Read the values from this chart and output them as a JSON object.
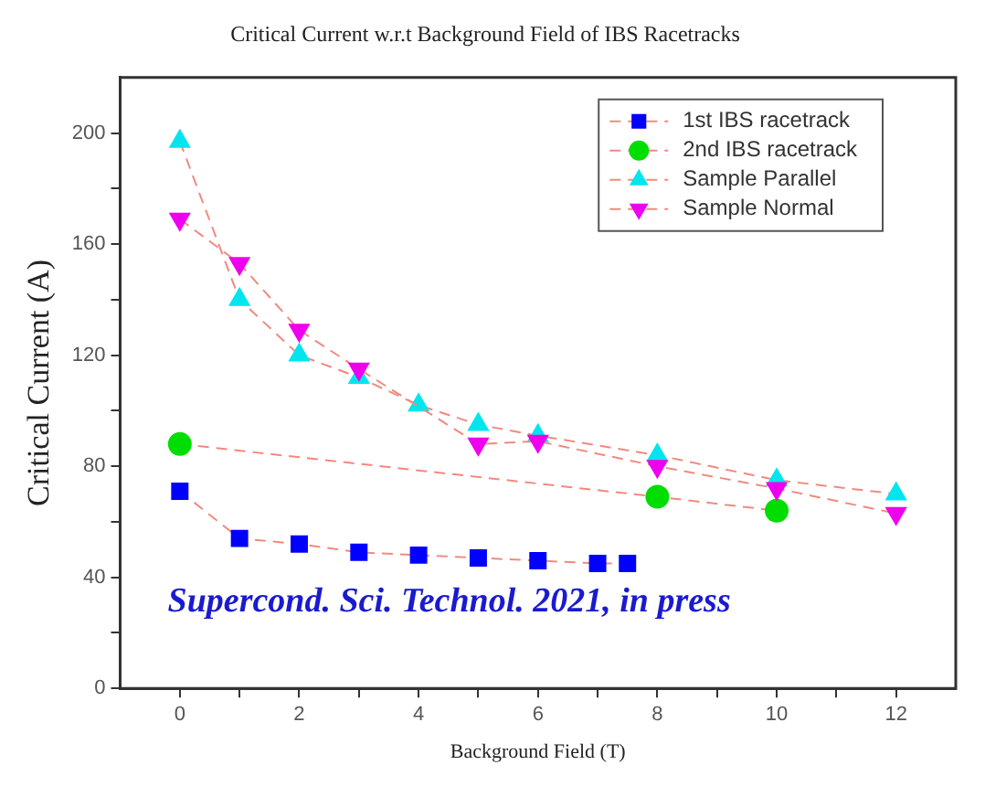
{
  "chart_data": {
    "type": "line",
    "title": "Critical Current w.r.t Background Field of IBS Racetracks",
    "xlabel": "Background Field (T)",
    "ylabel": "Critical Current (A)",
    "series": [
      {
        "name": "1st IBS racetrack",
        "color": "#0000ff",
        "marker": "square",
        "x": [
          0,
          1,
          2,
          3,
          4,
          5,
          6,
          7,
          7.5
        ],
        "values": [
          71,
          54,
          52,
          49,
          48,
          47,
          46,
          45,
          45
        ]
      },
      {
        "name": "2nd IBS racetrack",
        "color": "#00dd00",
        "marker": "circle",
        "x": [
          0,
          8,
          10
        ],
        "values": [
          88,
          69,
          64
        ]
      },
      {
        "name": "Sample Parallel",
        "color": "#00e5ee",
        "marker": "triangle",
        "x": [
          0,
          1,
          2,
          3,
          4,
          5,
          6,
          8,
          10,
          12
        ],
        "values": [
          197,
          140,
          120,
          112,
          102,
          95,
          91,
          84,
          75,
          70
        ]
      },
      {
        "name": "Sample Normal",
        "color": "#ee00ee",
        "marker": "triangle-down",
        "x": [
          0,
          1,
          2,
          3,
          5,
          6,
          8,
          10,
          12
        ],
        "values": [
          169,
          153,
          129,
          115,
          88,
          89,
          80,
          72,
          63
        ]
      }
    ],
    "line_style": "dashed",
    "legend": "top right",
    "grid": false,
    "xlim": [
      -1,
      13
    ],
    "xticks": [
      0,
      {
        "value": 1,
        "label": null
      },
      2,
      {
        "value": 3,
        "label": null
      },
      4,
      {
        "value": 5,
        "label": null
      },
      6,
      {
        "value": 7,
        "label": null
      },
      8,
      {
        "value": 9,
        "label": null
      },
      10,
      {
        "value": 11,
        "label": null
      },
      12
    ],
    "ylim": [
      0,
      220
    ],
    "yticks": [
      0,
      {
        "value": 20,
        "label": null
      },
      40,
      {
        "value": 60,
        "label": null
      },
      80,
      {
        "value": 100,
        "label": null
      },
      120,
      {
        "value": 140,
        "label": null
      },
      160,
      {
        "value": 180,
        "label": null
      },
      200
    ],
    "annotations": [
      "Supercond. Sci. Technol. 2021, in press"
    ]
  }
}
